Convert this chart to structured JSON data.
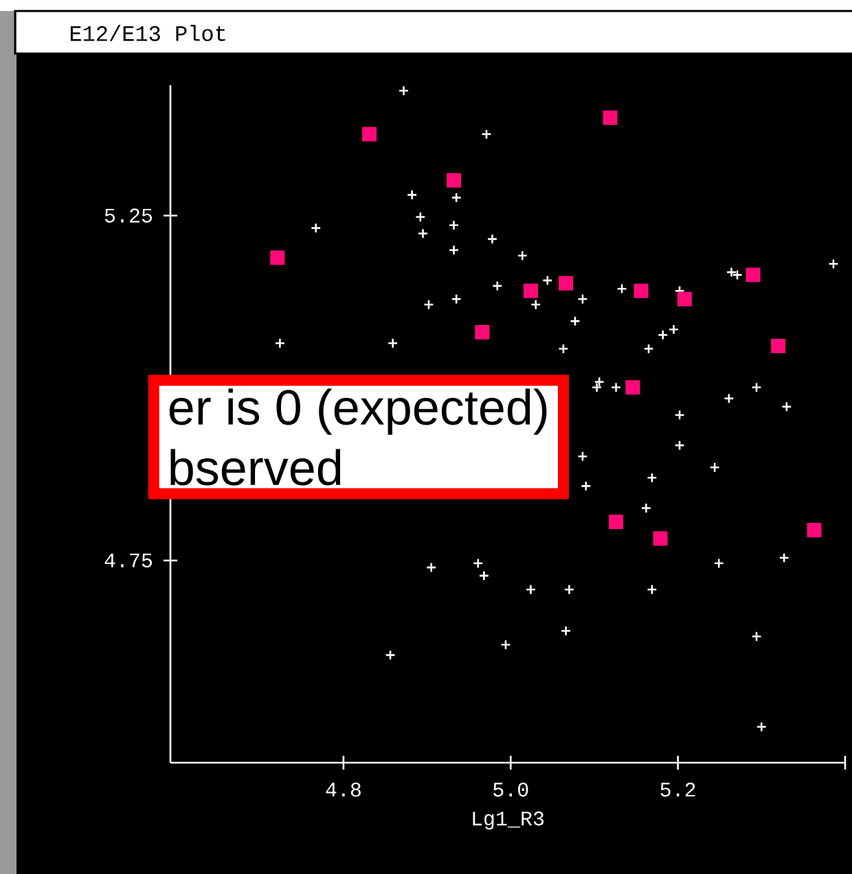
{
  "chart_data": {
    "type": "scatter",
    "title": "E12/E13 Plot",
    "xlabel": "Lg1_R3",
    "annotations": [
      "er is 0 (expected)",
      "bserved"
    ],
    "xlim": [
      4.593,
      5.4
    ],
    "ylim": [
      4.457,
      5.439
    ],
    "xticks": [
      4.8,
      {
        "value": 5.0,
        "label": "5.0"
      },
      5.2,
      {
        "value": 5.4,
        "label": null
      }
    ],
    "yticks": [
      4.75,
      5.25
    ],
    "series": [
      {
        "color": "#ffffff",
        "marker": "cross",
        "x": [
          4.872,
          4.971,
          4.882,
          4.935,
          4.892,
          4.932,
          4.767,
          4.895,
          4.978,
          4.932,
          4.984,
          4.902,
          4.935,
          4.724,
          4.859,
          5.014,
          5.386,
          5.264,
          5.271,
          5.044,
          5.133,
          5.202,
          5.03,
          5.086,
          5.077,
          5.182,
          5.195,
          5.165,
          5.063,
          5.106,
          5.103,
          5.126,
          5.294,
          5.261,
          5.33,
          5.202,
          5.202,
          5.086,
          5.244,
          5.09,
          5.169,
          5.162,
          5.249,
          5.327,
          5.024,
          5.07,
          5.169,
          5.066,
          4.994,
          5.294,
          5.3,
          4.905,
          4.961,
          4.968,
          4.856
        ],
        "values": [
          5.431,
          5.368,
          5.28,
          5.276,
          5.248,
          5.236,
          5.232,
          5.224,
          5.216,
          5.2,
          5.148,
          5.121,
          5.129,
          5.065,
          5.065,
          5.192,
          5.18,
          5.168,
          5.164,
          5.156,
          5.144,
          5.141,
          5.121,
          5.129,
          5.097,
          5.077,
          5.085,
          5.057,
          5.057,
          5.009,
          5.001,
          5.001,
          5.001,
          4.985,
          4.973,
          4.961,
          4.917,
          4.901,
          4.885,
          4.858,
          4.87,
          4.826,
          4.746,
          4.754,
          4.708,
          4.708,
          4.708,
          4.648,
          4.628,
          4.64,
          4.509,
          4.74,
          4.746,
          4.728,
          4.613
        ]
      },
      {
        "color": "#ff0a78",
        "marker": "square",
        "x": [
          4.831,
          4.932,
          4.721,
          5.119,
          5.024,
          5.066,
          5.156,
          5.208,
          5.29,
          4.966,
          5.32,
          5.146,
          5.126,
          5.179,
          5.363
        ],
        "values": [
          5.368,
          5.301,
          5.189,
          5.392,
          5.141,
          5.152,
          5.141,
          5.129,
          5.164,
          5.081,
          5.061,
          5.001,
          4.806,
          4.782,
          4.794
        ]
      }
    ]
  }
}
